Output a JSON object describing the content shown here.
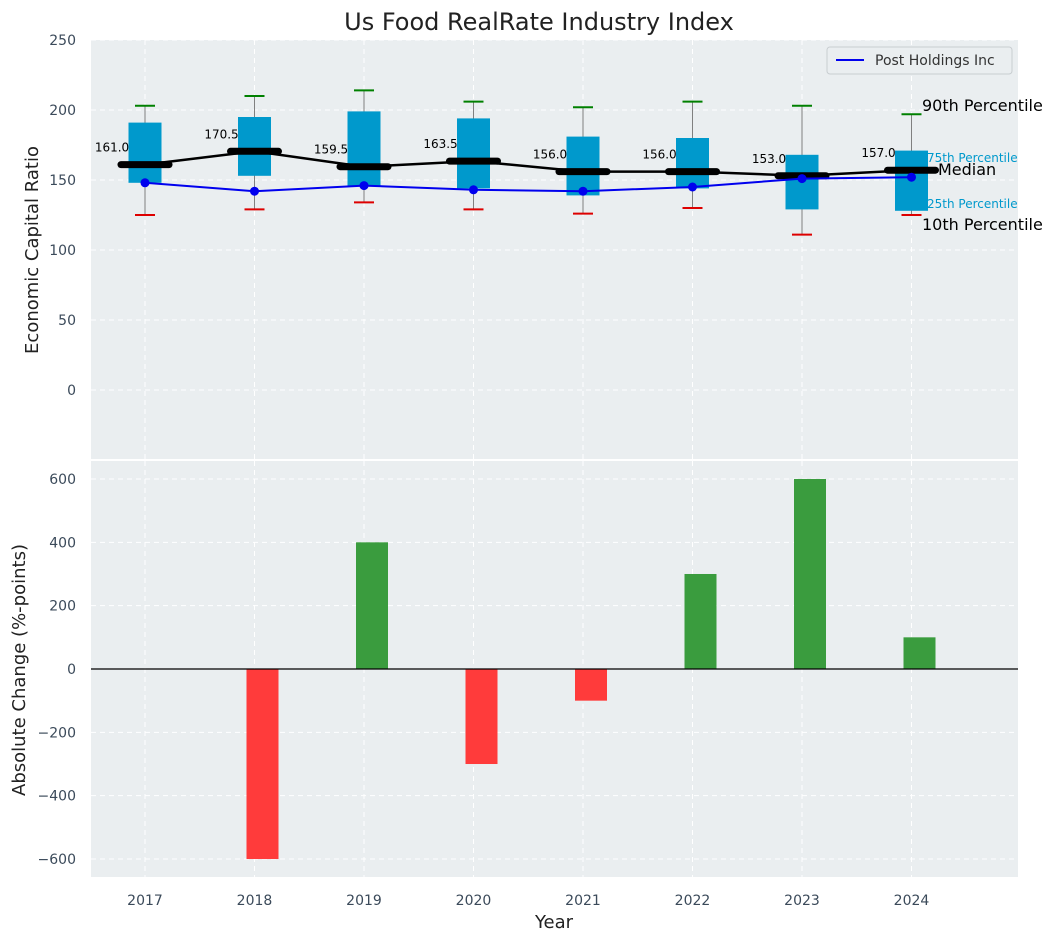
{
  "chart_data": [
    {
      "panel": "top",
      "type": "box-line",
      "title": "Us Food RealRate Industry Index",
      "ylabel": "Economic Capital Ratio",
      "ylim": [
        -50,
        250
      ],
      "yticks": [
        0,
        50,
        100,
        150,
        200,
        250
      ],
      "grid": true,
      "legend": {
        "position": "top-right",
        "entries": [
          "Post Holdings Inc"
        ]
      },
      "years": [
        "2017",
        "2018",
        "2019",
        "2020",
        "2021",
        "2022",
        "2023",
        "2024"
      ],
      "p10": [
        125,
        129,
        134,
        129,
        126,
        130,
        111,
        125
      ],
      "p25": [
        148,
        153,
        146,
        144,
        139,
        144,
        129,
        128
      ],
      "median": [
        161.0,
        170.5,
        159.5,
        163.5,
        156.0,
        156.0,
        153.0,
        157.0
      ],
      "median_labels": [
        "161.0",
        "170.5",
        "159.5",
        "163.5",
        "156.0",
        "156.0",
        "153.0",
        "157.0"
      ],
      "p75": [
        191,
        195,
        199,
        194,
        181,
        180,
        168,
        171
      ],
      "p90": [
        203,
        210,
        214,
        206,
        202,
        206,
        203,
        197
      ],
      "series": [
        {
          "name": "Post Holdings Inc",
          "values": [
            148,
            142,
            146,
            143,
            142,
            145,
            151,
            152
          ],
          "color": "#0000ee"
        }
      ],
      "annotations": {
        "p90": "90th Percentile",
        "p75": "75th Percentile",
        "median": "Median",
        "p25": "25th Percentile",
        "p10": "10th Percentile"
      },
      "colors": {
        "box": "#0099cc",
        "median": "#000000",
        "p90_cap": "#008000",
        "p10_cap": "#dd0000",
        "whisker": "#808080"
      }
    },
    {
      "panel": "bottom",
      "type": "bar",
      "xlabel": "Year",
      "ylabel": "Absolute Change (%-points)",
      "ylim": [
        -650,
        650
      ],
      "yticks": [
        -600,
        -400,
        -200,
        0,
        200,
        400,
        600
      ],
      "ytick_labels": [
        "−600",
        "−400",
        "−200",
        "0",
        "200",
        "400",
        "600"
      ],
      "categories": [
        "2017",
        "2018",
        "2019",
        "2020",
        "2021",
        "2022",
        "2023",
        "2024"
      ],
      "values": [
        0,
        -600,
        400,
        -300,
        -100,
        300,
        600,
        100
      ],
      "colors": {
        "positive": "#3a9c3e",
        "negative": "#ff3b3b"
      },
      "grid": true
    }
  ]
}
